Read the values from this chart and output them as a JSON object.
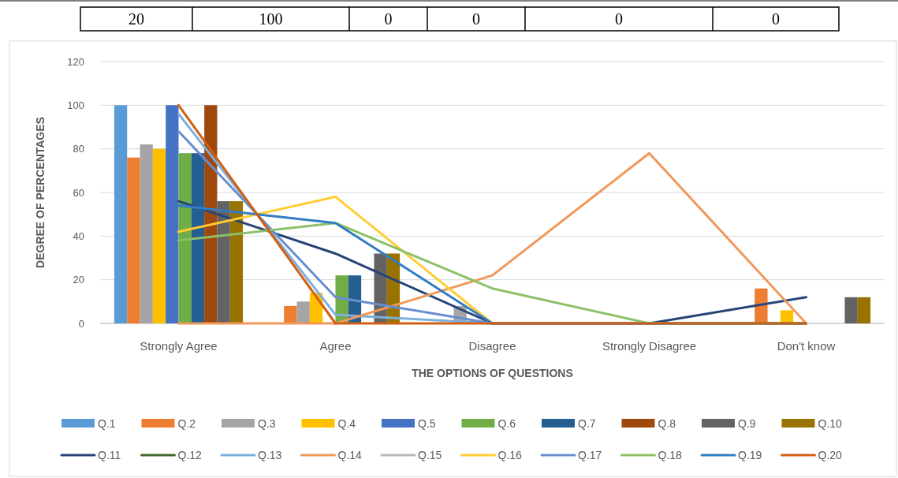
{
  "chart_data": {
    "type": "bar",
    "xlabel": "THE OPTIONS OF QUESTIONS",
    "ylabel": "DEGREE OF PERCENTAGES",
    "categories": [
      "Strongly Agree",
      "Agree",
      "Disagree",
      "Strongly Disagree",
      "Don't know"
    ],
    "ylim": [
      0,
      120
    ],
    "yticks": [
      0,
      20,
      40,
      60,
      80,
      100,
      120
    ],
    "grid": "y",
    "legend": "bottom",
    "marker": "none",
    "annotations": [
      "20",
      "100",
      "0",
      "0",
      "0",
      "0"
    ],
    "series": [
      {
        "name": "Q.1",
        "color": "#5b9bd5",
        "values": [
          100,
          0,
          0,
          0,
          0
        ]
      },
      {
        "name": "Q.2",
        "color": "#ed7d31",
        "values": [
          76,
          8,
          0,
          0,
          16
        ]
      },
      {
        "name": "Q.3",
        "color": "#a5a5a5",
        "values": [
          82,
          10,
          8,
          0,
          0
        ]
      },
      {
        "name": "Q.4",
        "color": "#ffc000",
        "values": [
          80,
          14,
          0,
          0,
          6
        ]
      },
      {
        "name": "Q.5",
        "color": "#4472c4",
        "values": [
          100,
          0,
          0,
          0,
          0
        ]
      },
      {
        "name": "Q.6",
        "color": "#70ad47",
        "values": [
          78,
          22,
          0,
          0,
          0
        ]
      },
      {
        "name": "Q.7",
        "color": "#255e91",
        "values": [
          78,
          22,
          0,
          0,
          0
        ]
      },
      {
        "name": "Q.8",
        "color": "#9e480e",
        "values": [
          100,
          0,
          0,
          0,
          0
        ]
      },
      {
        "name": "Q.9",
        "color": "#636363",
        "values": [
          56,
          32,
          0,
          0,
          12
        ]
      },
      {
        "name": "Q.10",
        "color": "#997300",
        "values": [
          56,
          32,
          0,
          0,
          12
        ]
      },
      {
        "name": "Q.11",
        "type": "line",
        "color": "#264478",
        "values": [
          56,
          32,
          0,
          0,
          12
        ]
      },
      {
        "name": "Q.12",
        "type": "line",
        "color": "#43682b",
        "values": [
          null,
          null,
          null,
          null,
          null
        ]
      },
      {
        "name": "Q.13",
        "type": "line",
        "color": "#7cafdd",
        "values": [
          96,
          4,
          0,
          0,
          0
        ]
      },
      {
        "name": "Q.14",
        "type": "line",
        "color": "#f1975a",
        "values": [
          0,
          0,
          22,
          78,
          0
        ]
      },
      {
        "name": "Q.15",
        "type": "line",
        "color": "#b7b7b7",
        "values": [
          null,
          null,
          null,
          null,
          null
        ]
      },
      {
        "name": "Q.16",
        "type": "line",
        "color": "#ffcd33",
        "values": [
          42,
          58,
          0,
          0,
          0
        ]
      },
      {
        "name": "Q.17",
        "type": "line",
        "color": "#698ed0",
        "values": [
          88,
          12,
          0,
          0,
          0
        ]
      },
      {
        "name": "Q.18",
        "type": "line",
        "color": "#8cc168",
        "values": [
          38,
          46,
          16,
          0,
          0
        ]
      },
      {
        "name": "Q.19",
        "type": "line",
        "color": "#327dc2",
        "values": [
          54,
          46,
          0,
          0,
          0
        ]
      },
      {
        "name": "Q.20",
        "type": "line",
        "color": "#d26012",
        "values": [
          100,
          0,
          0,
          0,
          0
        ]
      }
    ]
  }
}
